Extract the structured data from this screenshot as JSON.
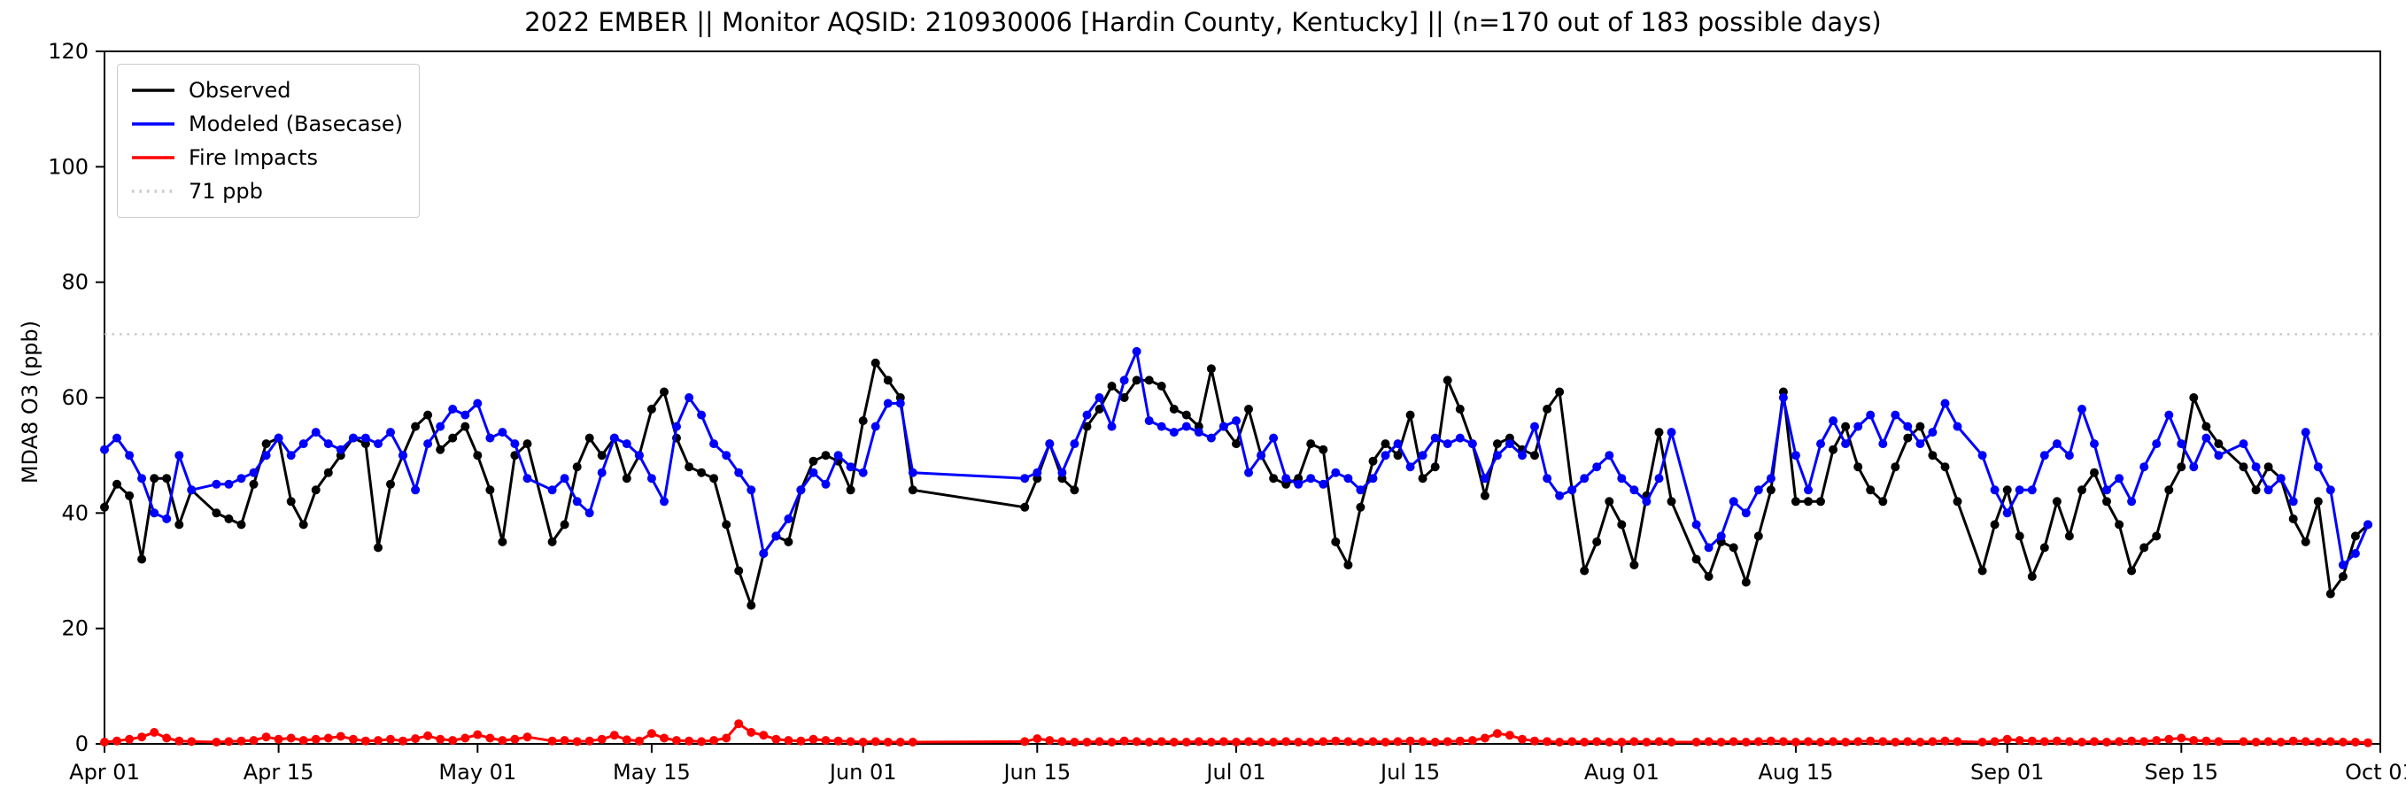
{
  "chart_data": {
    "type": "line",
    "title": "2022 EMBER || Monitor AQSID: 210930006 [Hardin County, Kentucky] || (n=170 out of 183 possible days)",
    "xlabel": "",
    "ylabel": "MDA8 O3 (ppb)",
    "ylim": [
      0,
      120
    ],
    "yticks": [
      0,
      20,
      40,
      60,
      80,
      100,
      120
    ],
    "x_total_days": 183,
    "xticks": [
      {
        "day": 0,
        "label": "Apr 01"
      },
      {
        "day": 14,
        "label": "Apr 15"
      },
      {
        "day": 30,
        "label": "May 01"
      },
      {
        "day": 44,
        "label": "May 15"
      },
      {
        "day": 61,
        "label": "Jun 01"
      },
      {
        "day": 75,
        "label": "Jun 15"
      },
      {
        "day": 91,
        "label": "Jul 01"
      },
      {
        "day": 105,
        "label": "Jul 15"
      },
      {
        "day": 122,
        "label": "Aug 01"
      },
      {
        "day": 136,
        "label": "Aug 15"
      },
      {
        "day": 153,
        "label": "Sep 01"
      },
      {
        "day": 167,
        "label": "Sep 15"
      },
      {
        "day": 183,
        "label": "Oct 01"
      }
    ],
    "grid": false,
    "legend_position": "upper left",
    "threshold": {
      "value": 71,
      "label": "71 ppb",
      "color": "#c9c9c9",
      "dash": "dotted"
    },
    "days": [
      0,
      1,
      2,
      3,
      4,
      5,
      6,
      7,
      9,
      10,
      11,
      12,
      13,
      14,
      15,
      16,
      17,
      18,
      19,
      20,
      21,
      22,
      23,
      24,
      25,
      26,
      27,
      28,
      29,
      30,
      31,
      32,
      33,
      34,
      36,
      37,
      38,
      39,
      40,
      41,
      42,
      43,
      44,
      45,
      46,
      47,
      48,
      49,
      50,
      51,
      52,
      53,
      54,
      55,
      56,
      57,
      58,
      59,
      60,
      61,
      62,
      63,
      64,
      65,
      74,
      75,
      76,
      77,
      78,
      79,
      80,
      81,
      82,
      83,
      84,
      85,
      86,
      87,
      88,
      89,
      90,
      91,
      92,
      93,
      94,
      95,
      96,
      97,
      98,
      99,
      100,
      101,
      102,
      103,
      104,
      105,
      106,
      107,
      108,
      109,
      110,
      111,
      112,
      113,
      114,
      115,
      116,
      117,
      118,
      119,
      120,
      121,
      122,
      123,
      124,
      125,
      126,
      128,
      129,
      130,
      131,
      132,
      133,
      134,
      135,
      136,
      137,
      138,
      139,
      140,
      141,
      142,
      143,
      144,
      145,
      146,
      147,
      148,
      149,
      151,
      152,
      153,
      154,
      155,
      156,
      157,
      158,
      159,
      160,
      161,
      162,
      163,
      164,
      165,
      166,
      167,
      168,
      169,
      170,
      172,
      173,
      174,
      175,
      176,
      177,
      178,
      179,
      180,
      181,
      182
    ],
    "series": [
      {
        "name": "Observed",
        "color": "#000000",
        "values": [
          41,
          45,
          43,
          32,
          46,
          46,
          38,
          44,
          40,
          39,
          38,
          45,
          52,
          53,
          42,
          38,
          44,
          47,
          50,
          53,
          52,
          34,
          45,
          50,
          55,
          57,
          51,
          53,
          55,
          50,
          44,
          35,
          50,
          52,
          35,
          38,
          48,
          53,
          50,
          53,
          46,
          50,
          58,
          61,
          53,
          48,
          47,
          46,
          38,
          30,
          24,
          33,
          36,
          35,
          44,
          49,
          50,
          49,
          44,
          56,
          66,
          63,
          60,
          44,
          41,
          46,
          52,
          46,
          44,
          55,
          58,
          62,
          60,
          63,
          63,
          62,
          58,
          57,
          55,
          65,
          55,
          52,
          58,
          50,
          46,
          45,
          46,
          52,
          51,
          35,
          31,
          41,
          49,
          52,
          50,
          57,
          46,
          48,
          63,
          58,
          52,
          43,
          52,
          53,
          51,
          50,
          58,
          61,
          44,
          30,
          35,
          42,
          38,
          31,
          43,
          54,
          42,
          32,
          29,
          35,
          34,
          28,
          36,
          44,
          61,
          42,
          42,
          42,
          51,
          55,
          48,
          44,
          42,
          48,
          53,
          55,
          50,
          48,
          42,
          30,
          38,
          44,
          36,
          29,
          34,
          42,
          36,
          44,
          47,
          42,
          38,
          30,
          34,
          36,
          44,
          48,
          60,
          55,
          52,
          48,
          44,
          48,
          46,
          39,
          35,
          42,
          26,
          29,
          36,
          38
        ]
      },
      {
        "name": "Modeled (Basecase)",
        "color": "#0000ff",
        "values": [
          51,
          53,
          50,
          46,
          40,
          39,
          50,
          44,
          45,
          45,
          46,
          47,
          50,
          53,
          50,
          52,
          54,
          52,
          51,
          53,
          53,
          52,
          54,
          50,
          44,
          52,
          55,
          58,
          57,
          59,
          53,
          54,
          52,
          46,
          44,
          46,
          42,
          40,
          47,
          53,
          52,
          50,
          46,
          42,
          55,
          60,
          57,
          52,
          50,
          47,
          44,
          33,
          36,
          39,
          44,
          47,
          45,
          50,
          48,
          47,
          55,
          59,
          59,
          47,
          46,
          47,
          52,
          47,
          52,
          57,
          60,
          55,
          63,
          68,
          56,
          55,
          54,
          55,
          54,
          53,
          55,
          56,
          47,
          50,
          53,
          46,
          45,
          46,
          45,
          47,
          46,
          44,
          46,
          50,
          52,
          48,
          50,
          53,
          52,
          53,
          52,
          46,
          50,
          52,
          50,
          55,
          46,
          43,
          44,
          46,
          48,
          50,
          46,
          44,
          42,
          46,
          54,
          38,
          34,
          36,
          42,
          40,
          44,
          46,
          60,
          50,
          44,
          52,
          56,
          52,
          55,
          57,
          52,
          57,
          55,
          52,
          54,
          59,
          55,
          50,
          44,
          40,
          44,
          44,
          50,
          52,
          50,
          58,
          52,
          44,
          46,
          42,
          48,
          52,
          57,
          52,
          48,
          53,
          50,
          52,
          48,
          44,
          46,
          42,
          54,
          48,
          44,
          31,
          33,
          38
        ]
      },
      {
        "name": "Fire Impacts",
        "color": "#ff0000",
        "values": [
          0.3,
          0.5,
          0.8,
          1.2,
          2.0,
          1.0,
          0.5,
          0.4,
          0.3,
          0.4,
          0.5,
          0.6,
          1.2,
          0.8,
          1.0,
          0.6,
          0.8,
          1.0,
          1.3,
          0.8,
          0.5,
          0.6,
          0.8,
          0.5,
          0.9,
          1.4,
          0.8,
          0.6,
          1.0,
          1.6,
          1.0,
          0.6,
          0.8,
          1.2,
          0.5,
          0.6,
          0.4,
          0.5,
          0.8,
          1.5,
          0.7,
          0.5,
          1.8,
          1.0,
          0.6,
          0.5,
          0.4,
          0.6,
          1.0,
          3.5,
          2.0,
          1.5,
          0.8,
          0.6,
          0.5,
          0.8,
          0.6,
          0.5,
          0.4,
          0.3,
          0.4,
          0.3,
          0.3,
          0.3,
          0.4,
          0.9,
          0.6,
          0.4,
          0.3,
          0.3,
          0.4,
          0.3,
          0.5,
          0.4,
          0.3,
          0.4,
          0.3,
          0.3,
          0.4,
          0.3,
          0.4,
          0.3,
          0.4,
          0.3,
          0.3,
          0.4,
          0.3,
          0.3,
          0.4,
          0.5,
          0.4,
          0.3,
          0.4,
          0.3,
          0.4,
          0.5,
          0.4,
          0.3,
          0.4,
          0.5,
          0.6,
          1.0,
          1.8,
          1.5,
          0.8,
          0.5,
          0.4,
          0.3,
          0.4,
          0.3,
          0.4,
          0.3,
          0.3,
          0.4,
          0.3,
          0.4,
          0.3,
          0.3,
          0.4,
          0.3,
          0.4,
          0.3,
          0.4,
          0.5,
          0.4,
          0.3,
          0.4,
          0.3,
          0.4,
          0.3,
          0.4,
          0.5,
          0.4,
          0.3,
          0.4,
          0.3,
          0.4,
          0.5,
          0.4,
          0.3,
          0.4,
          0.8,
          0.6,
          0.5,
          0.4,
          0.5,
          0.4,
          0.3,
          0.4,
          0.3,
          0.4,
          0.5,
          0.4,
          0.6,
          0.8,
          1.0,
          0.6,
          0.5,
          0.4,
          0.4,
          0.3,
          0.4,
          0.3,
          0.5,
          0.4,
          0.3,
          0.4,
          0.3,
          0.3,
          0.2
        ]
      }
    ]
  }
}
